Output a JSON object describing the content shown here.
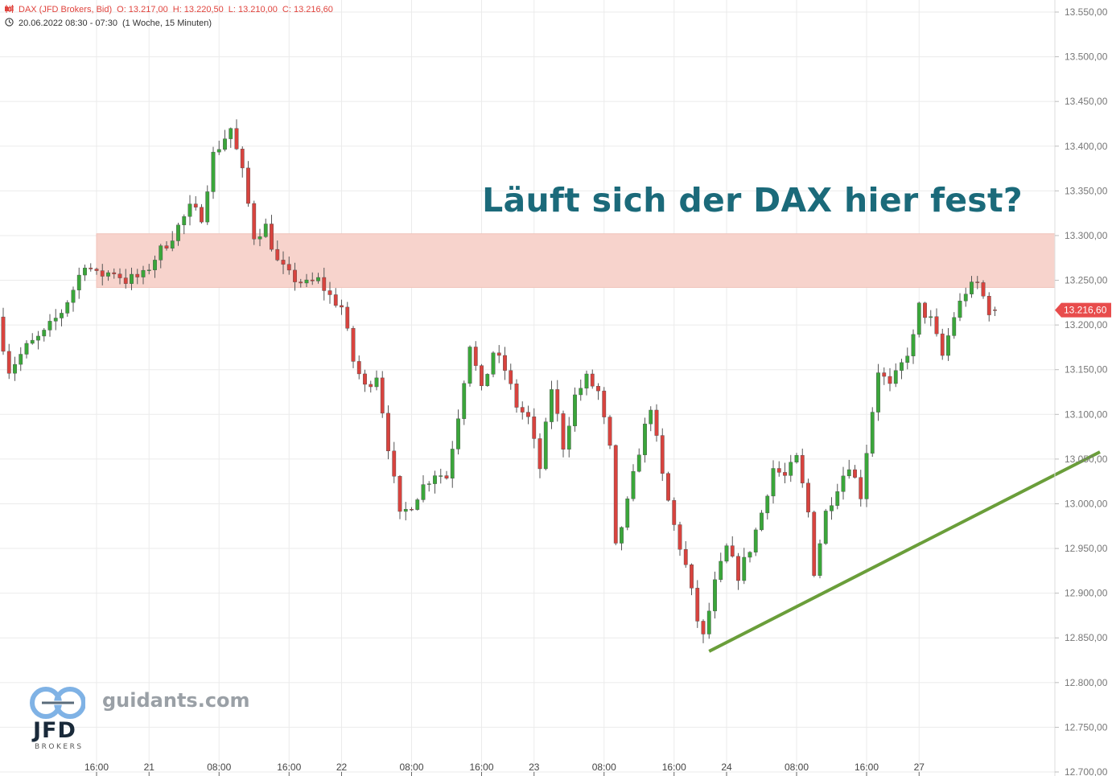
{
  "header": {
    "instrument": "DAX (JFD Brokers, Bid)",
    "open": "O: 13.217,00",
    "high": "H: 13.220,50",
    "low": "L: 13.210,00",
    "close": "C: 13.216,60",
    "period": "20.06.2022 08:30 - 07:30",
    "interval": "(1 Woche, 15 Minuten)"
  },
  "headline": "Läuft sich der DAX hier fest?",
  "branding": {
    "site": "guidants.com",
    "logo": "JFD",
    "logo_sub": "BROKERS"
  },
  "icons": {
    "chart_type": "candlestick-icon",
    "time": "clock-icon"
  },
  "colors": {
    "up": "#3aa63a",
    "down": "#d8433e",
    "zone": "#f7d3cc",
    "trendline": "#6a9e3a",
    "price_badge": "#e84c4c",
    "headline": "#1b6a7a"
  },
  "chart_data": {
    "type": "candlestick",
    "title": "DAX (JFD Brokers, Bid)",
    "current_price": 13216.6,
    "current_price_label": "13.216,60",
    "ylim": [
      12700,
      13550
    ],
    "y_ticks": [
      12700,
      12750,
      12800,
      12850,
      12900,
      12950,
      13000,
      13050,
      13100,
      13150,
      13200,
      13250,
      13300,
      13350,
      13400,
      13450,
      13500,
      13550
    ],
    "y_tick_labels": [
      "12.700,00",
      "12.750,00",
      "12.800,00",
      "12.850,00",
      "12.900,00",
      "12.950,00",
      "13.000,00",
      "13.050,00",
      "13.100,00",
      "13.150,00",
      "13.200,00",
      "13.250,00",
      "13.300,00",
      "13.350,00",
      "13.400,00",
      "13.450,00",
      "13.500,00",
      "13.550,00"
    ],
    "x_ticks": [
      {
        "label": "16:00",
        "i": 16
      },
      {
        "label": "21",
        "i": 25
      },
      {
        "label": "08:00",
        "i": 37
      },
      {
        "label": "16:00",
        "i": 49
      },
      {
        "label": "22",
        "i": 58
      },
      {
        "label": "08:00",
        "i": 70
      },
      {
        "label": "16:00",
        "i": 82
      },
      {
        "label": "23",
        "i": 91
      },
      {
        "label": "08:00",
        "i": 103
      },
      {
        "label": "16:00",
        "i": 115
      },
      {
        "label": "24",
        "i": 124
      },
      {
        "label": "08:00",
        "i": 136
      },
      {
        "label": "16:00",
        "i": 148
      },
      {
        "label": "27",
        "i": 157
      }
    ],
    "bar_count": 171,
    "price_path": [
      [
        0,
        13205
      ],
      [
        2,
        13150
      ],
      [
        5,
        13175
      ],
      [
        8,
        13190
      ],
      [
        11,
        13215
      ],
      [
        13,
        13240
      ],
      [
        15,
        13270
      ],
      [
        17,
        13255
      ],
      [
        20,
        13260
      ],
      [
        22,
        13250
      ],
      [
        25,
        13255
      ],
      [
        27,
        13275
      ],
      [
        30,
        13300
      ],
      [
        33,
        13330
      ],
      [
        35,
        13322
      ],
      [
        37,
        13390
      ],
      [
        40,
        13420
      ],
      [
        42,
        13370
      ],
      [
        44,
        13300
      ],
      [
        46,
        13310
      ],
      [
        48,
        13270
      ],
      [
        50,
        13255
      ],
      [
        53,
        13245
      ],
      [
        55,
        13250
      ],
      [
        57,
        13232
      ],
      [
        59,
        13220
      ],
      [
        61,
        13160
      ],
      [
        63,
        13130
      ],
      [
        65,
        13145
      ],
      [
        67,
        13065
      ],
      [
        69,
        12985
      ],
      [
        71,
        13000
      ],
      [
        73,
        13020
      ],
      [
        75,
        13035
      ],
      [
        77,
        13030
      ],
      [
        79,
        13100
      ],
      [
        81,
        13180
      ],
      [
        83,
        13125
      ],
      [
        85,
        13170
      ],
      [
        87,
        13150
      ],
      [
        89,
        13110
      ],
      [
        91,
        13095
      ],
      [
        93,
        13040
      ],
      [
        95,
        13130
      ],
      [
        97,
        13065
      ],
      [
        99,
        13120
      ],
      [
        101,
        13140
      ],
      [
        103,
        13125
      ],
      [
        105,
        13060
      ],
      [
        106,
        12950
      ],
      [
        108,
        13000
      ],
      [
        110,
        13060
      ],
      [
        112,
        13110
      ],
      [
        114,
        13030
      ],
      [
        116,
        12975
      ],
      [
        118,
        12930
      ],
      [
        120,
        12870
      ],
      [
        121,
        12850
      ],
      [
        123,
        12910
      ],
      [
        125,
        12950
      ],
      [
        127,
        12920
      ],
      [
        129,
        12950
      ],
      [
        131,
        12990
      ],
      [
        133,
        13040
      ],
      [
        135,
        13030
      ],
      [
        137,
        13050
      ],
      [
        139,
        12990
      ],
      [
        140,
        12925
      ],
      [
        142,
        12990
      ],
      [
        144,
        13020
      ],
      [
        146,
        13045
      ],
      [
        148,
        13010
      ],
      [
        149,
        13060
      ],
      [
        151,
        13150
      ],
      [
        153,
        13130
      ],
      [
        155,
        13155
      ],
      [
        157,
        13185
      ],
      [
        158,
        13220
      ],
      [
        160,
        13205
      ],
      [
        162,
        13165
      ],
      [
        164,
        13210
      ],
      [
        166,
        13238
      ],
      [
        168,
        13246
      ],
      [
        170,
        13216.6
      ]
    ],
    "last_bar": {
      "open": 13217.0,
      "high": 13220.5,
      "low": 13210.0,
      "close": 13216.6
    },
    "resistance_zone": {
      "from_price": 13242,
      "to_price": 13302,
      "start_i": 16
    },
    "trendline": {
      "start": {
        "i": 121,
        "price": 12835
      },
      "end": {
        "i": 188,
        "price": 13058
      }
    },
    "grid": true
  }
}
